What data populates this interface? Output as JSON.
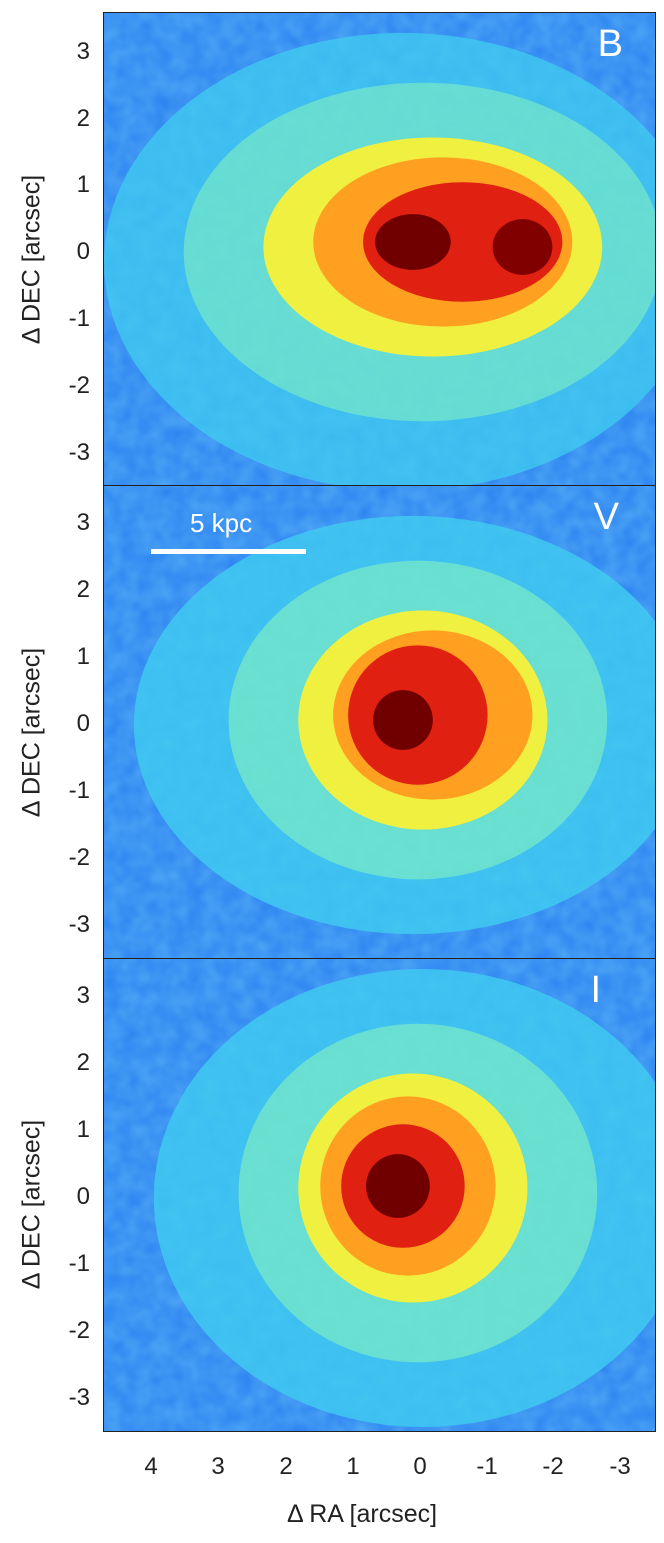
{
  "panels": [
    {
      "band": "B",
      "ylabel": "Δ DEC [arcsec]"
    },
    {
      "band": "V",
      "ylabel": "Δ DEC [arcsec]",
      "scale_label": "5 kpc"
    },
    {
      "band": "I",
      "ylabel": "Δ DEC [arcsec]"
    }
  ],
  "y_ticks": [
    "3",
    "2",
    "1",
    "0",
    "-1",
    "-2",
    "-3"
  ],
  "x_ticks": [
    "4",
    "3",
    "2",
    "1",
    "0",
    "-1",
    "-2",
    "-3"
  ],
  "xlabel": "Δ RA [arcsec]",
  "colormap": [
    "#1030c8",
    "#2a80f0",
    "#40d0f0",
    "#80f0c0",
    "#f0f040",
    "#ffa020",
    "#e02010",
    "#700000"
  ]
}
